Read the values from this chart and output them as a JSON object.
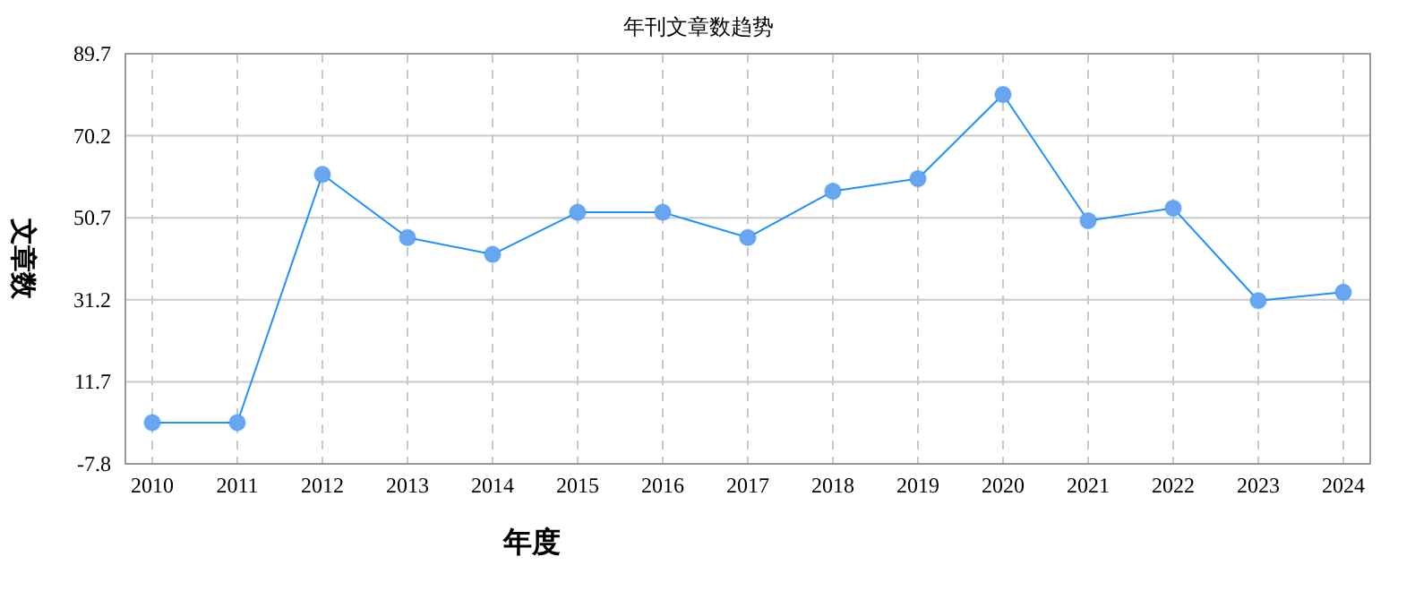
{
  "chart_data": {
    "type": "line",
    "title": "年刊文章数趋势",
    "xlabel": "年度",
    "ylabel": "文章数",
    "categories": [
      "2010",
      "2011",
      "2012",
      "2013",
      "2014",
      "2015",
      "2016",
      "2017",
      "2018",
      "2019",
      "2020",
      "2021",
      "2022",
      "2023",
      "2024"
    ],
    "series": [
      {
        "color": "#1e90ff",
        "values": [
          2,
          2,
          61,
          46,
          42,
          52,
          52,
          46,
          57,
          60,
          80,
          50,
          53,
          31,
          33
        ]
      }
    ],
    "ylim": [
      -7.8,
      89.7
    ],
    "yticks": [
      -7.8,
      11.7,
      31.2,
      50.7,
      70.2,
      89.7
    ],
    "grid": true,
    "marker": "circle",
    "line_style": "solid"
  }
}
